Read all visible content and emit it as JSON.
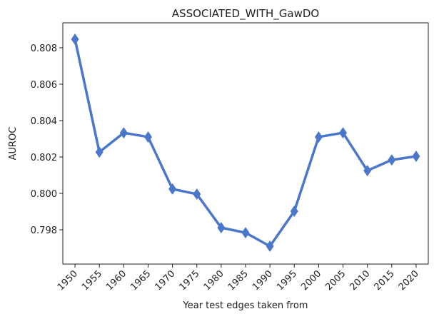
{
  "chart_data": {
    "type": "line",
    "title": "ASSOCIATED_WITH_GawDO",
    "x_label": "Year test edges taken from",
    "y_label": "AUROC",
    "categories": [
      "1950",
      "1955",
      "1960",
      "1965",
      "1970",
      "1975",
      "1980",
      "1985",
      "1990",
      "1995",
      "2000",
      "2005",
      "2010",
      "2015",
      "2020"
    ],
    "values": [
      0.80847,
      0.80227,
      0.80333,
      0.8031,
      0.80024,
      0.79996,
      0.79812,
      0.79784,
      0.7971,
      0.79902,
      0.8031,
      0.80333,
      0.80125,
      0.80184,
      0.80204
    ],
    "color": "#4a76cc",
    "marker": "diamond",
    "ylim": [
      0.79612,
      0.80937
    ],
    "yticks": [
      0.798,
      {
        "value": 0.8,
        "label": "0.800"
      },
      0.802,
      0.804,
      0.806,
      0.808
    ]
  }
}
